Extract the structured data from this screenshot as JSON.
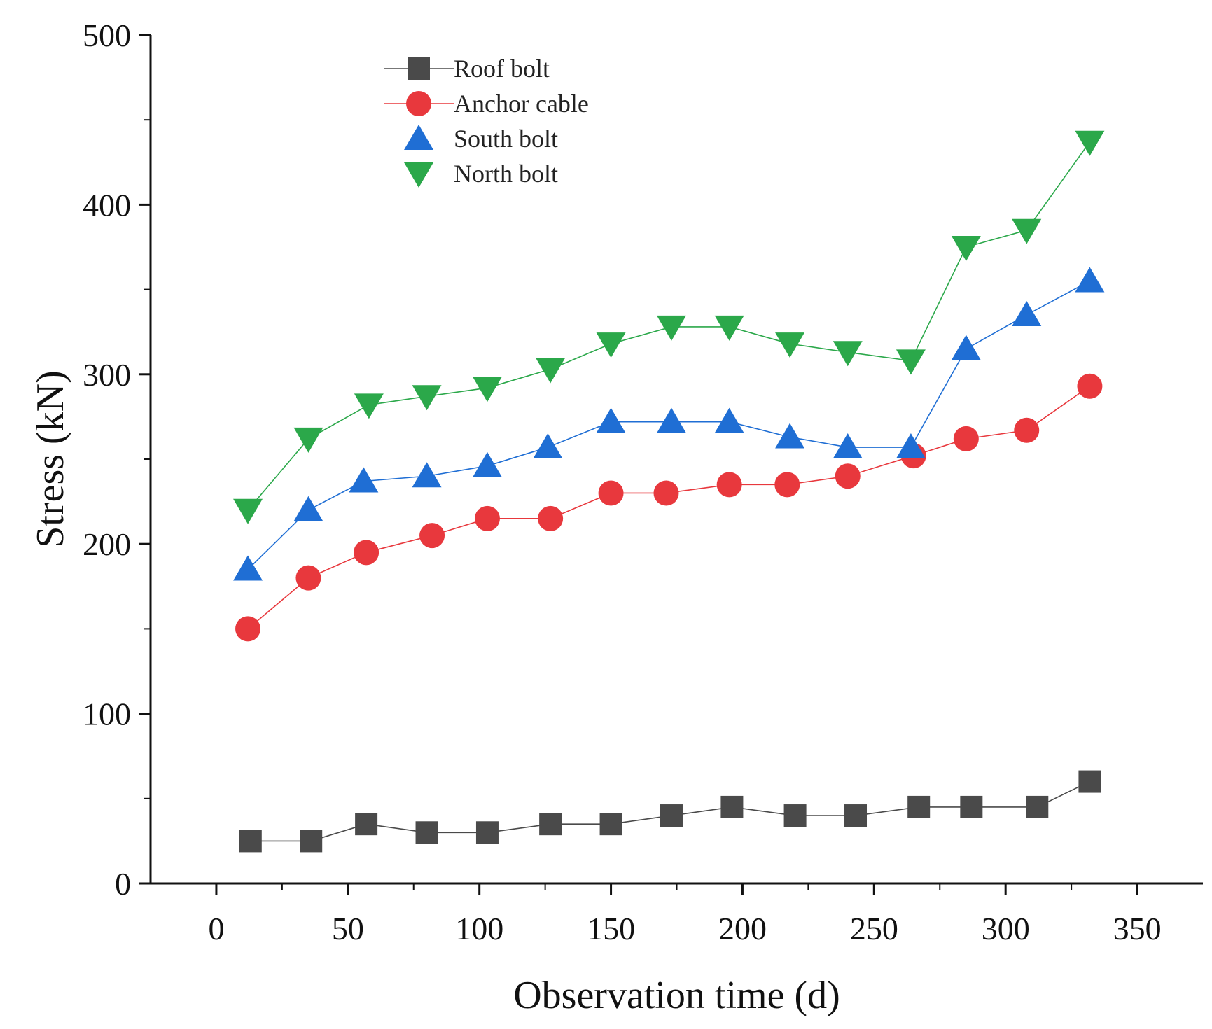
{
  "chart_data": {
    "type": "line",
    "title": "",
    "xlabel": "Observation time (d)",
    "ylabel": "Stress (kN)",
    "xlim": [
      -25,
      375
    ],
    "ylim": [
      0,
      500
    ],
    "x_ticks": [
      0,
      50,
      100,
      150,
      200,
      250,
      300,
      350
    ],
    "y_ticks": [
      0,
      100,
      200,
      300,
      400,
      500
    ],
    "x_tick_labels": [
      "0",
      "50",
      "100",
      "150",
      "200",
      "250",
      "300",
      "350"
    ],
    "y_tick_labels": [
      "0",
      "100",
      "200",
      "300",
      "400",
      "500"
    ],
    "grid": false,
    "legend_position": "top-left",
    "series": [
      {
        "name": "Roof bolt",
        "marker": "square",
        "color": "#4a4a4a",
        "x": [
          13,
          36,
          57,
          80,
          103,
          127,
          150,
          173,
          196,
          220,
          243,
          267,
          287,
          312,
          332
        ],
        "y": [
          25,
          25,
          35,
          30,
          30,
          35,
          35,
          40,
          45,
          40,
          40,
          45,
          45,
          45,
          60
        ]
      },
      {
        "name": "Anchor cable",
        "marker": "circle",
        "color": "#e8383d",
        "x": [
          12,
          35,
          57,
          82,
          103,
          127,
          150,
          171,
          195,
          217,
          240,
          265,
          285,
          308,
          332
        ],
        "y": [
          150,
          180,
          195,
          205,
          215,
          215,
          230,
          230,
          235,
          235,
          240,
          252,
          262,
          267,
          293
        ]
      },
      {
        "name": "South bolt",
        "marker": "triangle-up",
        "color": "#1f6ed4",
        "x": [
          12,
          35,
          56,
          80,
          103,
          126,
          150,
          173,
          195,
          218,
          240,
          264,
          285,
          308,
          332
        ],
        "y": [
          185,
          220,
          237,
          240,
          246,
          257,
          272,
          272,
          272,
          263,
          257,
          257,
          315,
          335,
          355
        ]
      },
      {
        "name": "North bolt",
        "marker": "triangle-down",
        "color": "#2ba84a",
        "x": [
          12,
          35,
          58,
          80,
          103,
          127,
          150,
          173,
          195,
          218,
          240,
          264,
          285,
          308,
          332
        ],
        "y": [
          220,
          262,
          282,
          287,
          292,
          303,
          318,
          328,
          328,
          318,
          313,
          308,
          375,
          385,
          437
        ]
      }
    ]
  }
}
